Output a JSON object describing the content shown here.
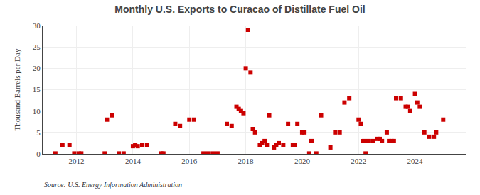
{
  "chart_data": {
    "type": "scatter",
    "title": "Monthly U.S. Exports to Curacao of Distillate Fuel Oil",
    "ylabel": "Thousand Barrels per Day",
    "annotations": [
      "Source: U.S. Energy Information Administration"
    ],
    "color": "#cc0000",
    "marker": "square",
    "grid": true,
    "xlim": [
      2010.8,
      2025.8
    ],
    "xticks": [
      2012,
      2014,
      2016,
      2018,
      2020,
      2022,
      2024
    ],
    "ylim": [
      0,
      30
    ],
    "yticks": [
      0,
      5,
      10,
      15,
      20,
      25,
      30
    ],
    "x": [
      2011.25,
      2011.5,
      2011.75,
      2011.92,
      2012.08,
      2012.17,
      2013.0,
      2013.08,
      2013.25,
      2013.5,
      2013.67,
      2014.0,
      2014.08,
      2014.17,
      2014.33,
      2014.5,
      2015.0,
      2015.08,
      2015.5,
      2015.67,
      2016.0,
      2016.17,
      2016.5,
      2016.67,
      2016.83,
      2017.0,
      2017.33,
      2017.5,
      2017.67,
      2017.75,
      2017.83,
      2017.92,
      2018.0,
      2018.08,
      2018.17,
      2018.25,
      2018.33,
      2018.5,
      2018.58,
      2018.67,
      2018.75,
      2018.83,
      2019.0,
      2019.08,
      2019.17,
      2019.33,
      2019.5,
      2019.67,
      2019.75,
      2019.83,
      2020.0,
      2020.08,
      2020.25,
      2020.33,
      2020.5,
      2020.67,
      2021.0,
      2021.17,
      2021.33,
      2021.5,
      2021.67,
      2022.0,
      2022.08,
      2022.17,
      2022.25,
      2022.33,
      2022.5,
      2022.67,
      2022.75,
      2022.83,
      2023.0,
      2023.08,
      2023.17,
      2023.25,
      2023.33,
      2023.5,
      2023.67,
      2023.75,
      2023.83,
      2024.0,
      2024.08,
      2024.17,
      2024.33,
      2024.5,
      2024.67,
      2024.75,
      2025.0
    ],
    "values": [
      0.1,
      2.0,
      2.0,
      0.1,
      0.1,
      0.1,
      0.1,
      8.0,
      9.0,
      0.1,
      0.1,
      1.8,
      2.0,
      1.8,
      2.0,
      2.0,
      0.1,
      0.1,
      7.0,
      6.5,
      8.0,
      8.0,
      0.1,
      0.1,
      0.1,
      0.1,
      7.0,
      6.5,
      11.0,
      10.5,
      10.0,
      9.5,
      20.0,
      29.0,
      19.0,
      5.8,
      5.0,
      2.0,
      2.5,
      3.0,
      2.0,
      9.0,
      1.5,
      2.0,
      2.5,
      2.0,
      7.0,
      2.0,
      2.0,
      7.0,
      5.0,
      5.0,
      0.1,
      3.0,
      0.1,
      9.0,
      1.5,
      5.0,
      5.0,
      12.0,
      13.0,
      8.0,
      7.0,
      3.0,
      0.1,
      3.0,
      3.0,
      3.5,
      3.5,
      3.0,
      5.0,
      3.0,
      3.0,
      3.0,
      13.0,
      13.0,
      11.0,
      11.0,
      10.0,
      14.0,
      12.0,
      11.0,
      5.0,
      4.0,
      4.0,
      5.0,
      8.0
    ]
  }
}
